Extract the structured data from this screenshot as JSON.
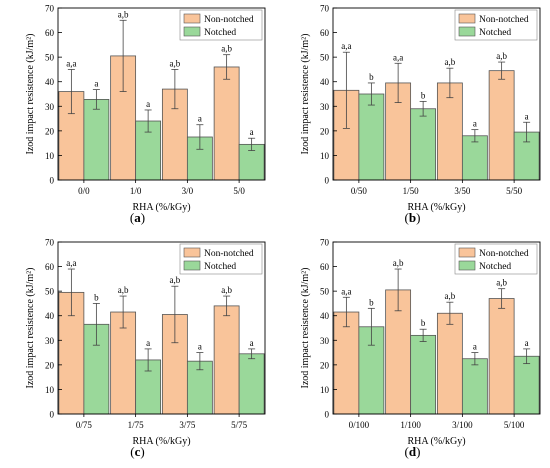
{
  "colors": {
    "non_notched": "#f9c49a",
    "notched": "#9ad89a",
    "axis": "#000000",
    "error_bar": "#444444"
  },
  "chart_data": [
    {
      "type": "bar",
      "panel_label": "a",
      "xlabel": "RHA (%/kGy)",
      "ylabel": "Izod impact resistence (kJ/m²)",
      "ylim": [
        0,
        70
      ],
      "yticks": [
        0,
        10,
        20,
        30,
        40,
        50,
        60,
        70
      ],
      "legend": "top-right",
      "categories": [
        "0/0",
        "1/0",
        "3/0",
        "5/0"
      ],
      "series": [
        {
          "name": "Non-notched",
          "values": [
            36,
            50.5,
            37,
            46
          ],
          "errors": [
            9,
            14.5,
            8,
            5
          ],
          "labels": [
            "a,a",
            "a,b",
            "a,b",
            "a,b"
          ]
        },
        {
          "name": "Notched",
          "values": [
            32.8,
            24,
            17.5,
            14.5
          ],
          "errors": [
            4,
            4.5,
            5,
            2.5
          ],
          "labels": [
            "a",
            "a",
            "a",
            "a"
          ]
        }
      ]
    },
    {
      "type": "bar",
      "panel_label": "b",
      "xlabel": "RHA (%/kGy)",
      "ylabel": "Izod impact resistence (kJ/m²)",
      "ylim": [
        0,
        70
      ],
      "yticks": [
        0,
        10,
        20,
        30,
        40,
        50,
        60,
        70
      ],
      "legend": "top-right",
      "categories": [
        "0/50",
        "1/50",
        "3/50",
        "5/50"
      ],
      "series": [
        {
          "name": "Non-notched",
          "values": [
            36.5,
            39.5,
            39.5,
            44.5
          ],
          "errors": [
            15.5,
            8,
            6,
            3.5
          ],
          "labels": [
            "a,a",
            "a,a",
            "a,b",
            "a,b"
          ]
        },
        {
          "name": "Notched",
          "values": [
            35,
            29,
            18,
            19.5
          ],
          "errors": [
            4.5,
            3,
            2.5,
            4
          ],
          "labels": [
            "b",
            "b",
            "a",
            "a"
          ]
        }
      ]
    },
    {
      "type": "bar",
      "panel_label": "c",
      "xlabel": "RHA (%/kGy)",
      "ylabel": "Izod impact resistence (kJ/m²)",
      "ylim": [
        0,
        70
      ],
      "yticks": [
        0,
        10,
        20,
        30,
        40,
        50,
        60,
        70
      ],
      "legend": "top-right",
      "categories": [
        "0/75",
        "1/75",
        "3/75",
        "5/75"
      ],
      "series": [
        {
          "name": "Non-notched",
          "values": [
            49.5,
            41.5,
            40.5,
            44
          ],
          "errors": [
            9.5,
            6.5,
            11.5,
            4
          ],
          "labels": [
            "a,a",
            "a,b",
            "a,b",
            "a,b"
          ]
        },
        {
          "name": "Notched",
          "values": [
            36.5,
            22,
            21.5,
            24.5
          ],
          "errors": [
            8.5,
            4.5,
            3.5,
            2
          ],
          "labels": [
            "b",
            "a",
            "a",
            "a"
          ]
        }
      ]
    },
    {
      "type": "bar",
      "panel_label": "d",
      "xlabel": "RHA (%/kGy)",
      "ylabel": "Izod impact resistence (kJ/m²)",
      "ylim": [
        0,
        70
      ],
      "yticks": [
        0,
        10,
        20,
        30,
        40,
        50,
        60,
        70
      ],
      "legend": "top-right",
      "categories": [
        "0/100",
        "1/100",
        "3/100",
        "5/100"
      ],
      "series": [
        {
          "name": "Non-notched",
          "values": [
            41.5,
            50.5,
            41,
            47
          ],
          "errors": [
            6,
            8.5,
            4.5,
            4
          ],
          "labels": [
            "a,a",
            "a,b",
            "a,b",
            "a,b"
          ]
        },
        {
          "name": "Notched",
          "values": [
            35.5,
            32,
            22.5,
            23.5
          ],
          "errors": [
            7.5,
            2.5,
            2.5,
            3
          ],
          "labels": [
            "b",
            "b",
            "a",
            "a"
          ]
        }
      ]
    }
  ]
}
